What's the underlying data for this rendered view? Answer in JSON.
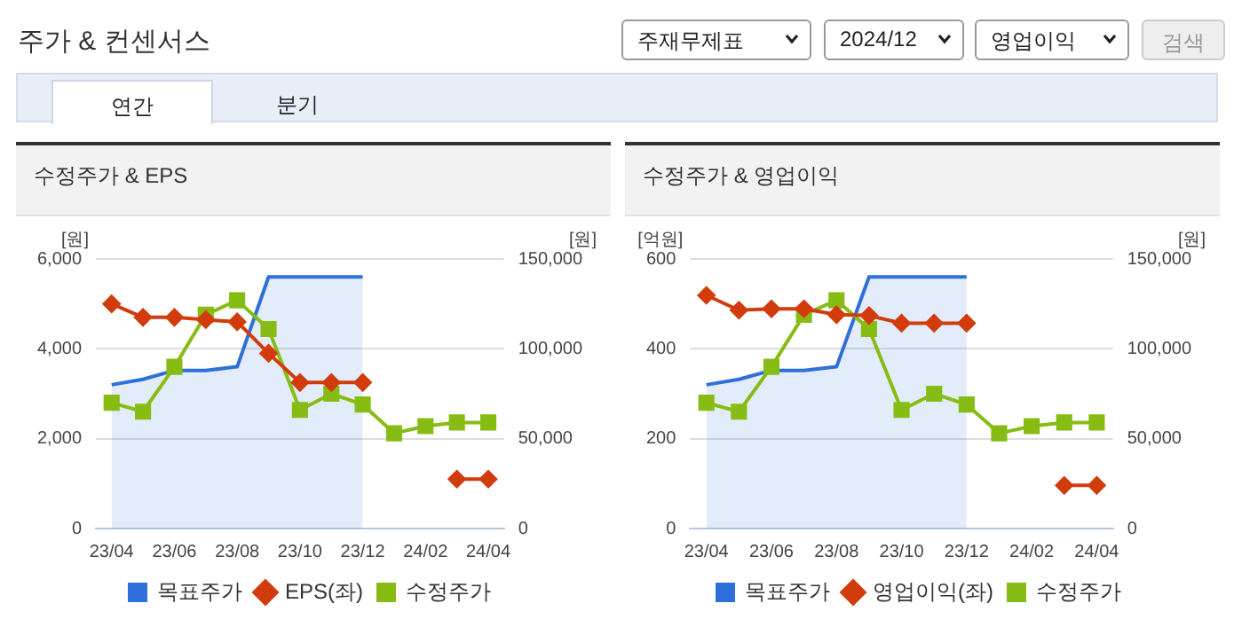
{
  "chart_data": [
    {
      "type": "other",
      "title": "주가 & 컨센서스",
      "annotations": [
        "주재무제표",
        "2024/12",
        "영업이익",
        "검색",
        "연간",
        "분기"
      ]
    },
    {
      "type": "line",
      "title": "수정주가 & EPS",
      "ylabel": "[원]",
      "y2label": "[원]",
      "categories": [
        "23/04",
        null,
        "23/06",
        null,
        "23/08",
        null,
        "23/10",
        null,
        "23/12",
        null,
        "24/02",
        null,
        "24/04"
      ],
      "ylim": [
        0,
        6000
      ],
      "yticks": [
        0,
        {
          "value": 2000,
          "label": "2,000"
        },
        {
          "value": 4000,
          "label": "4,000"
        },
        {
          "value": 6000,
          "label": "6,000"
        }
      ],
      "y2lim": [
        0,
        150000
      ],
      "y2ticks": [
        0,
        {
          "value": 50000,
          "label": "50,000"
        },
        {
          "value": 100000,
          "label": "100,000"
        },
        {
          "value": 150000,
          "label": "150,000"
        }
      ],
      "grid": "y",
      "legend": "bottom",
      "line_style": "solid",
      "series": [
        {
          "name": "목표주가",
          "type": "area",
          "axis": "y2",
          "color": "#2f6fdc",
          "marker": "none",
          "values": [
            80000,
            83000,
            88000,
            88000,
            90000,
            140000,
            140000,
            140000,
            140000,
            null,
            null,
            null,
            null
          ]
        },
        {
          "name": "EPS(좌)",
          "type": "line",
          "color": "#d23c0c",
          "marker": "diamond",
          "values": [
            5000,
            4700,
            4700,
            4650,
            4600,
            3900,
            3250,
            3250,
            3250,
            null,
            null,
            1100,
            1100
          ]
        },
        {
          "name": "수정주가",
          "type": "line",
          "axis": "y2",
          "color": "#86bc14",
          "marker": "square",
          "values": [
            70000,
            65000,
            90000,
            119000,
            127000,
            111000,
            66000,
            75000,
            69000,
            53000,
            57000,
            59000,
            59000
          ]
        }
      ]
    },
    {
      "type": "line",
      "title": "수정주가 & 영업이익",
      "ylabel": "[억원]",
      "y2label": "[원]",
      "categories": [
        "23/04",
        null,
        "23/06",
        null,
        "23/08",
        null,
        "23/10",
        null,
        "23/12",
        null,
        "24/02",
        null,
        "24/04"
      ],
      "ylim": [
        0,
        600
      ],
      "yticks": [
        0,
        200,
        400,
        600
      ],
      "y2lim": [
        0,
        150000
      ],
      "y2ticks": [
        0,
        {
          "value": 50000,
          "label": "50,000"
        },
        {
          "value": 100000,
          "label": "100,000"
        },
        {
          "value": 150000,
          "label": "150,000"
        }
      ],
      "grid": "y",
      "legend": "bottom",
      "line_style": "solid",
      "series": [
        {
          "name": "목표주가",
          "type": "area",
          "axis": "y2",
          "color": "#2f6fdc",
          "marker": "none",
          "values": [
            80000,
            83000,
            88000,
            88000,
            90000,
            140000,
            140000,
            140000,
            140000,
            null,
            null,
            null,
            null
          ]
        },
        {
          "name": "영업이익(좌)",
          "type": "line",
          "color": "#d23c0c",
          "marker": "diamond",
          "values": [
            519,
            486,
            489,
            489,
            476,
            474,
            457,
            457,
            457,
            null,
            null,
            96,
            96
          ]
        },
        {
          "name": "수정주가",
          "type": "line",
          "axis": "y2",
          "color": "#86bc14",
          "marker": "square",
          "values": [
            70000,
            65000,
            90000,
            119000,
            127000,
            111000,
            66000,
            75000,
            69000,
            53000,
            57000,
            59000,
            59000
          ]
        }
      ]
    }
  ]
}
